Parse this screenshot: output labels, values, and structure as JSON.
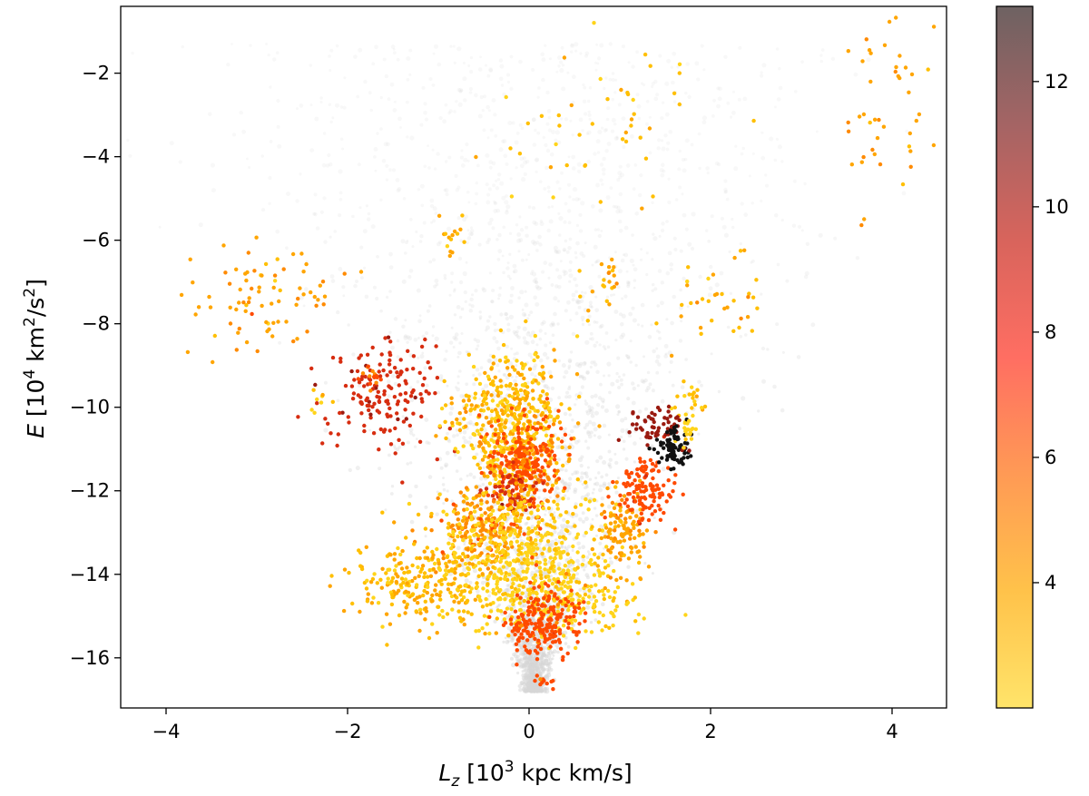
{
  "chart_data": {
    "type": "scatter",
    "title": "",
    "xlabel": "L_z [10^3 kpc km/s]",
    "ylabel": "E [10^4 km^2/s^2]",
    "xlim": [
      -4.5,
      4.6
    ],
    "ylim": [
      -17.2,
      -0.4
    ],
    "grid": false,
    "x_ticks": [
      -4,
      -2,
      0,
      2,
      4
    ],
    "y_ticks": [
      -16,
      -14,
      -12,
      -10,
      -8,
      -6,
      -4,
      -2
    ],
    "x_tick_labels": [
      "−4",
      "−2",
      "0",
      "2",
      "4"
    ],
    "y_tick_labels": [
      "−16",
      "−14",
      "−12",
      "−10",
      "−8",
      "−6",
      "−4",
      "−2"
    ],
    "colorbar": {
      "range": [
        2.0,
        13.2
      ],
      "ticks": [
        4,
        6,
        8,
        10,
        12
      ],
      "tick_labels": [
        "4",
        "6",
        "8",
        "10",
        "12"
      ],
      "colormap": [
        "#ffe46a",
        "#ffc24a",
        "#ff9a55",
        "#ff6e62",
        "#d8645c",
        "#a46464",
        "#6e6262"
      ]
    },
    "background": {
      "description": "grey density of all stars",
      "color": "#d6d6d6"
    },
    "clusters": [
      {
        "cx": -2.9,
        "cy": -7.4,
        "sx": 0.35,
        "sy": 0.55,
        "n": 80,
        "value": 4.2
      },
      {
        "cx": -2.3,
        "cy": -9.9,
        "sx": 0.08,
        "sy": 0.25,
        "n": 8,
        "value": 3.0
      },
      {
        "cx": -1.6,
        "cy": -9.7,
        "sx": 0.3,
        "sy": 0.65,
        "n": 160,
        "value": 8.8
      },
      {
        "cx": -1.75,
        "cy": -9.3,
        "sx": 0.08,
        "sy": 0.15,
        "n": 15,
        "value": 5.5
      },
      {
        "cx": -0.85,
        "cy": -6.0,
        "sx": 0.13,
        "sy": 0.35,
        "n": 15,
        "value": 3.8
      },
      {
        "cx": -0.75,
        "cy": -10.3,
        "sx": 0.1,
        "sy": 0.3,
        "n": 20,
        "value": 3.3
      },
      {
        "cx": 0.8,
        "cy": -3.5,
        "sx": 0.55,
        "sy": 1.0,
        "n": 45,
        "value": 3.4
      },
      {
        "cx": 3.95,
        "cy": -3.0,
        "sx": 0.25,
        "sy": 1.3,
        "n": 45,
        "value": 4.2
      },
      {
        "cx": 0.85,
        "cy": -7.0,
        "sx": 0.15,
        "sy": 0.35,
        "n": 22,
        "value": 3.9
      },
      {
        "cx": 2.1,
        "cy": -7.5,
        "sx": 0.3,
        "sy": 0.6,
        "n": 35,
        "value": 3.5
      },
      {
        "cx": 1.75,
        "cy": -10.0,
        "sx": 0.08,
        "sy": 0.35,
        "n": 25,
        "value": 3.0
      },
      {
        "cx": -0.15,
        "cy": -10.6,
        "sx": 0.28,
        "sy": 0.9,
        "n": 550,
        "value": 3.3
      },
      {
        "cx": -0.05,
        "cy": -11.3,
        "sx": 0.2,
        "sy": 0.55,
        "n": 280,
        "value": 5.8
      },
      {
        "cx": -0.2,
        "cy": -12.0,
        "sx": 0.12,
        "sy": 0.25,
        "n": 60,
        "value": 8.5
      },
      {
        "cx": -0.5,
        "cy": -12.9,
        "sx": 0.25,
        "sy": 0.5,
        "n": 180,
        "value": 4.8
      },
      {
        "cx": -0.1,
        "cy": -13.4,
        "sx": 0.45,
        "sy": 0.7,
        "n": 380,
        "value": 2.6
      },
      {
        "cx": -1.15,
        "cy": -14.2,
        "sx": 0.4,
        "sy": 0.5,
        "n": 260,
        "value": 3.4
      },
      {
        "cx": 0.3,
        "cy": -14.6,
        "sx": 0.45,
        "sy": 0.45,
        "n": 250,
        "value": 2.4
      },
      {
        "cx": 0.15,
        "cy": -15.05,
        "sx": 0.18,
        "sy": 0.45,
        "n": 220,
        "value": 6.3
      },
      {
        "cx": 0.15,
        "cy": -16.5,
        "sx": 0.06,
        "sy": 0.08,
        "n": 12,
        "value": 6.2
      },
      {
        "cx": 1.05,
        "cy": -13.0,
        "sx": 0.15,
        "sy": 0.5,
        "n": 120,
        "value": 4.2
      },
      {
        "cx": 1.3,
        "cy": -12.0,
        "sx": 0.15,
        "sy": 0.4,
        "n": 120,
        "value": 6.5
      },
      {
        "cx": 1.42,
        "cy": -10.4,
        "sx": 0.15,
        "sy": 0.22,
        "n": 60,
        "value": 10.5
      },
      {
        "cx": 1.6,
        "cy": -11.0,
        "sx": 0.1,
        "sy": 0.25,
        "n": 80,
        "value": 13.0
      },
      {
        "cx": 1.75,
        "cy": -10.6,
        "sx": 0.05,
        "sy": 0.15,
        "n": 15,
        "value": 2.4
      }
    ]
  }
}
